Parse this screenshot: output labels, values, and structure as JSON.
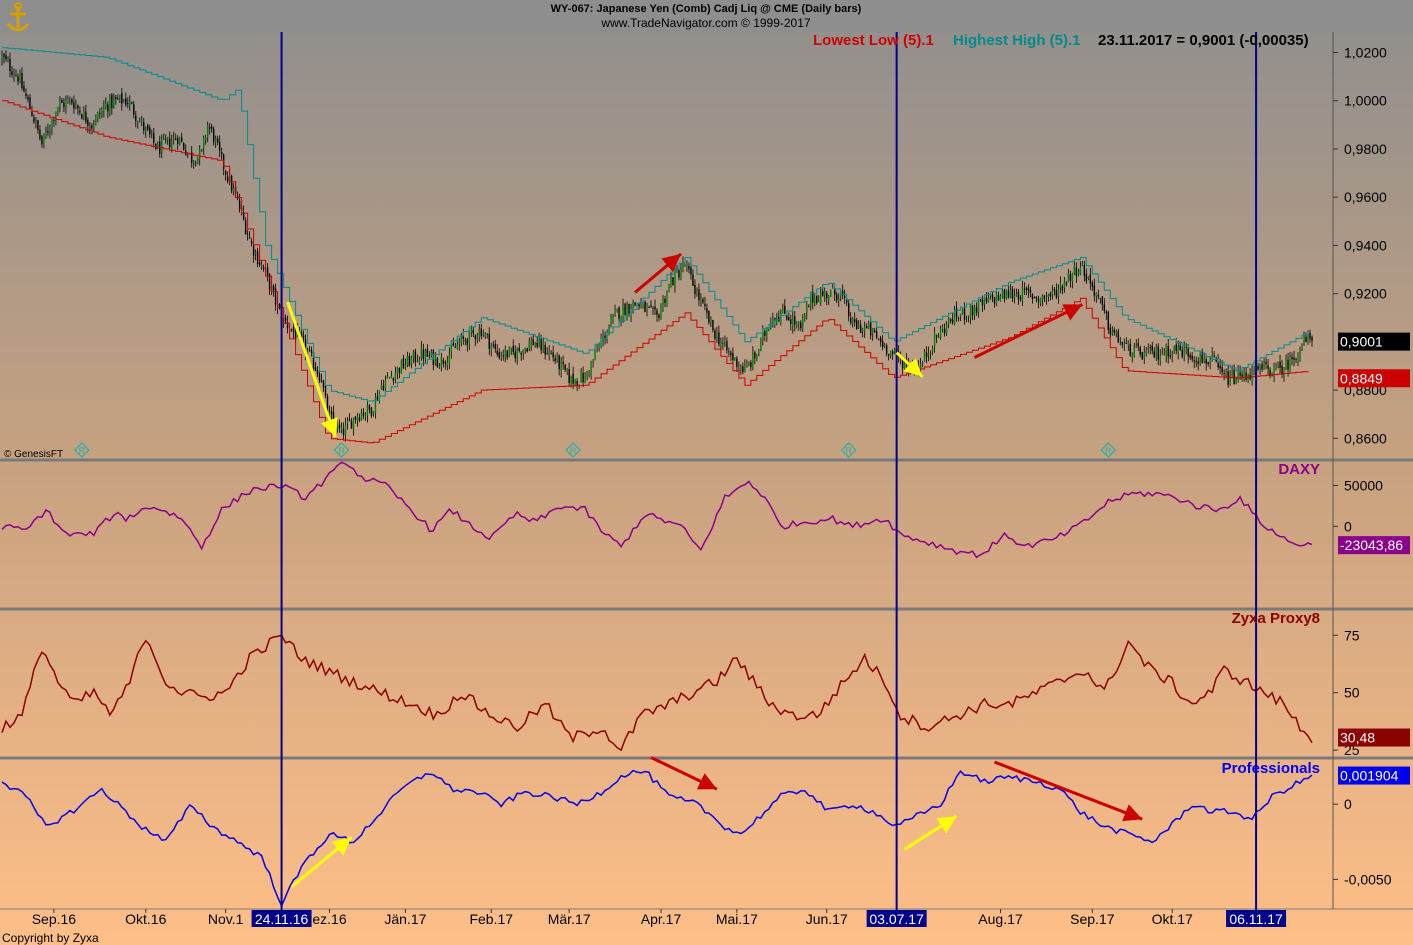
{
  "header": {
    "title_line1": "WY-067:  Japanese Yen (Comb) Cadj Liq @ CME  (Daily bars)",
    "title_line2": "www.TradeNavigator.com © 1999-2017",
    "legend_lowest": "Lowest Low (5).1",
    "legend_highest": "Highest High (5).1",
    "legend_value": "23.11.2017 = 0,9001 (-0,00035)"
  },
  "footer": {
    "copyright": "Copyright by Zyxa",
    "genesis": "© GenesisFT"
  },
  "colors": {
    "candle_up": "#008000",
    "candle_down": "#000000",
    "lowest": "#cc0000",
    "highest": "#008b8b",
    "daxy": "#8b008b",
    "proxy": "#8b0000",
    "prof": "#0000ee",
    "vline": "#00008b",
    "yellow_arrow": "#ffff00",
    "red_arrow": "#cc0000"
  },
  "chart_data": [
    {
      "type": "candlestick",
      "name_panel": "",
      "y_ticks": [
        "1,0200",
        "1,0000",
        "0,9800",
        "0,9600",
        "0,9400",
        "0,9200",
        "0,8800",
        "0,8600"
      ],
      "y_tick_values": [
        1.02,
        1.0,
        0.98,
        0.96,
        0.94,
        0.92,
        0.88,
        0.86
      ],
      "ylim": [
        0.851,
        1.0285
      ],
      "last_value": "0,9001",
      "last_value_num": 0.9001,
      "lowest_value": "0,8849",
      "lowest_value_num": 0.8849,
      "close_anchors": [
        [
          0,
          1.018
        ],
        [
          8,
          1.01
        ],
        [
          15,
          0.995
        ],
        [
          20,
          0.982
        ],
        [
          28,
          0.998
        ],
        [
          35,
          1.0
        ],
        [
          45,
          0.99
        ],
        [
          52,
          0.998
        ],
        [
          58,
          1.0
        ],
        [
          63,
          1.0
        ],
        [
          70,
          0.99
        ],
        [
          78,
          0.98
        ],
        [
          88,
          0.985
        ],
        [
          95,
          0.976
        ],
        [
          100,
          0.978
        ],
        [
          103,
          0.99
        ],
        [
          106,
          0.985
        ],
        [
          110,
          0.975
        ],
        [
          118,
          0.958
        ],
        [
          125,
          0.94
        ],
        [
          132,
          0.928
        ],
        [
          140,
          0.91
        ],
        [
          150,
          0.9
        ],
        [
          160,
          0.885
        ],
        [
          163,
          0.87
        ],
        [
          170,
          0.862
        ],
        [
          178,
          0.87
        ],
        [
          185,
          0.872
        ],
        [
          190,
          0.882
        ],
        [
          200,
          0.89
        ],
        [
          210,
          0.895
        ],
        [
          220,
          0.892
        ],
        [
          230,
          0.9
        ],
        [
          240,
          0.905
        ],
        [
          248,
          0.895
        ],
        [
          256,
          0.895
        ],
        [
          266,
          0.9
        ],
        [
          275,
          0.895
        ],
        [
          285,
          0.884
        ],
        [
          292,
          0.885
        ],
        [
          300,
          0.9
        ],
        [
          308,
          0.912
        ],
        [
          318,
          0.916
        ],
        [
          328,
          0.91
        ],
        [
          335,
          0.925
        ],
        [
          342,
          0.932
        ],
        [
          348,
          0.92
        ],
        [
          356,
          0.905
        ],
        [
          364,
          0.895
        ],
        [
          372,
          0.888
        ],
        [
          378,
          0.895
        ],
        [
          385,
          0.91
        ],
        [
          392,
          0.912
        ],
        [
          400,
          0.905
        ],
        [
          405,
          0.918
        ],
        [
          413,
          0.92
        ],
        [
          420,
          0.92
        ],
        [
          426,
          0.907
        ],
        [
          434,
          0.905
        ],
        [
          440,
          0.9
        ],
        [
          446,
          0.895
        ],
        [
          454,
          0.89
        ],
        [
          460,
          0.89
        ],
        [
          466,
          0.9
        ],
        [
          476,
          0.91
        ],
        [
          486,
          0.913
        ],
        [
          496,
          0.918
        ],
        [
          505,
          0.92
        ],
        [
          513,
          0.92
        ],
        [
          520,
          0.918
        ],
        [
          527,
          0.92
        ],
        [
          534,
          0.927
        ],
        [
          540,
          0.932
        ],
        [
          548,
          0.92
        ],
        [
          555,
          0.905
        ],
        [
          562,
          0.898
        ],
        [
          570,
          0.895
        ],
        [
          578,
          0.895
        ],
        [
          586,
          0.897
        ],
        [
          593,
          0.896
        ],
        [
          600,
          0.893
        ],
        [
          606,
          0.892
        ],
        [
          612,
          0.885
        ],
        [
          618,
          0.885
        ],
        [
          625,
          0.887
        ],
        [
          632,
          0.889
        ],
        [
          638,
          0.888
        ],
        [
          643,
          0.89
        ],
        [
          648,
          0.895
        ],
        [
          652,
          0.9
        ],
        [
          656,
          0.902
        ]
      ],
      "lowest_anchors": [
        [
          0,
          1.0
        ],
        [
          52,
          0.985
        ],
        [
          110,
          0.975
        ],
        [
          163,
          0.86
        ],
        [
          185,
          0.858
        ],
        [
          240,
          0.88
        ],
        [
          292,
          0.882
        ],
        [
          342,
          0.912
        ],
        [
          372,
          0.882
        ],
        [
          413,
          0.91
        ],
        [
          446,
          0.885
        ],
        [
          505,
          0.902
        ],
        [
          540,
          0.918
        ],
        [
          562,
          0.888
        ],
        [
          618,
          0.885
        ],
        [
          656,
          0.888
        ]
      ],
      "highest_anchors": [
        [
          0,
          1.022
        ],
        [
          52,
          1.018
        ],
        [
          110,
          1.0
        ],
        [
          118,
          1.005
        ],
        [
          132,
          0.94
        ],
        [
          163,
          0.88
        ],
        [
          185,
          0.875
        ],
        [
          240,
          0.91
        ],
        [
          292,
          0.895
        ],
        [
          342,
          0.935
        ],
        [
          372,
          0.9
        ],
        [
          413,
          0.925
        ],
        [
          446,
          0.9
        ],
        [
          505,
          0.925
        ],
        [
          540,
          0.935
        ],
        [
          562,
          0.91
        ],
        [
          618,
          0.888
        ],
        [
          656,
          0.905
        ]
      ]
    },
    {
      "type": "line",
      "name": "DAXY",
      "y_ticks": [
        "50000",
        "0"
      ],
      "y_tick_values": [
        50000,
        0
      ],
      "ylim": [
        -100000,
        80000
      ],
      "last_value": "-23043,86",
      "anchors": [
        [
          0,
          0
        ],
        [
          12,
          -5000
        ],
        [
          22,
          20000
        ],
        [
          32,
          -10000
        ],
        [
          45,
          -10000
        ],
        [
          56,
          15000
        ],
        [
          62,
          10000
        ],
        [
          75,
          25000
        ],
        [
          90,
          10000
        ],
        [
          100,
          -25000
        ],
        [
          110,
          20000
        ],
        [
          125,
          45000
        ],
        [
          140,
          50000
        ],
        [
          152,
          35000
        ],
        [
          172,
          80000
        ],
        [
          180,
          60000
        ],
        [
          192,
          50000
        ],
        [
          205,
          20000
        ],
        [
          215,
          -5000
        ],
        [
          225,
          20000
        ],
        [
          235,
          0
        ],
        [
          245,
          -15000
        ],
        [
          257,
          15000
        ],
        [
          267,
          5000
        ],
        [
          280,
          25000
        ],
        [
          292,
          20000
        ],
        [
          300,
          -5000
        ],
        [
          310,
          -25000
        ],
        [
          322,
          15000
        ],
        [
          340,
          0
        ],
        [
          350,
          -30000
        ],
        [
          362,
          35000
        ],
        [
          374,
          55000
        ],
        [
          382,
          35000
        ],
        [
          390,
          0
        ],
        [
          402,
          5000
        ],
        [
          415,
          10000
        ],
        [
          425,
          0
        ],
        [
          434,
          5000
        ],
        [
          442,
          10000
        ],
        [
          450,
          -10000
        ],
        [
          464,
          -20000
        ],
        [
          478,
          -30000
        ],
        [
          490,
          -35000
        ],
        [
          503,
          -10000
        ],
        [
          512,
          -25000
        ],
        [
          528,
          -15000
        ],
        [
          542,
          5000
        ],
        [
          554,
          30000
        ],
        [
          566,
          40000
        ],
        [
          578,
          40000
        ],
        [
          588,
          35000
        ],
        [
          598,
          25000
        ],
        [
          610,
          20000
        ],
        [
          620,
          35000
        ],
        [
          630,
          5000
        ],
        [
          645,
          -20000
        ],
        [
          656,
          -23043
        ]
      ]
    },
    {
      "type": "line",
      "name": "Zyxa Proxy8",
      "y_ticks": [
        "75",
        "50",
        "25"
      ],
      "y_tick_values": [
        75,
        50,
        25
      ],
      "ylim": [
        22,
        86
      ],
      "last_value": "30,48",
      "anchors": [
        [
          0,
          35
        ],
        [
          10,
          40
        ],
        [
          20,
          70
        ],
        [
          28,
          55
        ],
        [
          36,
          45
        ],
        [
          46,
          50
        ],
        [
          55,
          40
        ],
        [
          64,
          55
        ],
        [
          72,
          75
        ],
        [
          82,
          55
        ],
        [
          90,
          50
        ],
        [
          100,
          48
        ],
        [
          112,
          50
        ],
        [
          124,
          65
        ],
        [
          140,
          75
        ],
        [
          150,
          65
        ],
        [
          162,
          60
        ],
        [
          175,
          55
        ],
        [
          190,
          50
        ],
        [
          205,
          45
        ],
        [
          218,
          40
        ],
        [
          230,
          50
        ],
        [
          245,
          40
        ],
        [
          258,
          35
        ],
        [
          272,
          45
        ],
        [
          285,
          30
        ],
        [
          300,
          35
        ],
        [
          310,
          25
        ],
        [
          320,
          40
        ],
        [
          334,
          45
        ],
        [
          346,
          50
        ],
        [
          358,
          55
        ],
        [
          368,
          65
        ],
        [
          376,
          55
        ],
        [
          385,
          45
        ],
        [
          396,
          40
        ],
        [
          408,
          40
        ],
        [
          422,
          55
        ],
        [
          432,
          65
        ],
        [
          442,
          55
        ],
        [
          450,
          40
        ],
        [
          464,
          35
        ],
        [
          478,
          40
        ],
        [
          492,
          45
        ],
        [
          505,
          45
        ],
        [
          518,
          50
        ],
        [
          530,
          55
        ],
        [
          542,
          60
        ],
        [
          552,
          50
        ],
        [
          564,
          72
        ],
        [
          575,
          60
        ],
        [
          585,
          55
        ],
        [
          595,
          45
        ],
        [
          605,
          50
        ],
        [
          612,
          60
        ],
        [
          622,
          55
        ],
        [
          632,
          50
        ],
        [
          642,
          45
        ],
        [
          650,
          35
        ],
        [
          656,
          30.48
        ]
      ]
    },
    {
      "type": "line",
      "name": "Professionals",
      "y_ticks": [
        "0",
        "-0,0050"
      ],
      "y_tick_values": [
        0,
        -0.005
      ],
      "ylim": [
        -0.0069,
        0.003
      ],
      "last_value": "0,001904",
      "anchors": [
        [
          0,
          0.0015
        ],
        [
          12,
          0.0005
        ],
        [
          22,
          -0.0015
        ],
        [
          35,
          -0.0005
        ],
        [
          50,
          0.001
        ],
        [
          58,
          0.0
        ],
        [
          70,
          -0.0015
        ],
        [
          82,
          -0.0025
        ],
        [
          95,
          0.0
        ],
        [
          105,
          -0.0015
        ],
        [
          118,
          -0.0025
        ],
        [
          130,
          -0.0035
        ],
        [
          140,
          -0.0066
        ],
        [
          152,
          -0.0038
        ],
        [
          164,
          -0.002
        ],
        [
          176,
          -0.0025
        ],
        [
          190,
          -0.0005
        ],
        [
          200,
          0.001
        ],
        [
          215,
          0.0022
        ],
        [
          225,
          0.001
        ],
        [
          238,
          0.0008
        ],
        [
          250,
          0.0
        ],
        [
          262,
          0.0008
        ],
        [
          275,
          0.0005
        ],
        [
          288,
          0.0
        ],
        [
          300,
          0.0008
        ],
        [
          312,
          0.002
        ],
        [
          322,
          0.0022
        ],
        [
          334,
          0.0005
        ],
        [
          348,
          0.0
        ],
        [
          362,
          -0.0015
        ],
        [
          370,
          -0.002
        ],
        [
          378,
          -0.001
        ],
        [
          390,
          0.0005
        ],
        [
          402,
          0.001
        ],
        [
          414,
          -0.0005
        ],
        [
          426,
          0.0
        ],
        [
          436,
          -0.0005
        ],
        [
          448,
          -0.0015
        ],
        [
          458,
          -0.0008
        ],
        [
          470,
          0.0
        ],
        [
          480,
          0.0022
        ],
        [
          492,
          0.0015
        ],
        [
          504,
          0.0018
        ],
        [
          518,
          0.0015
        ],
        [
          530,
          0.001
        ],
        [
          540,
          -0.0005
        ],
        [
          552,
          -0.0015
        ],
        [
          564,
          -0.002
        ],
        [
          576,
          -0.0025
        ],
        [
          585,
          -0.0015
        ],
        [
          596,
          0.0
        ],
        [
          606,
          -0.0005
        ],
        [
          616,
          -0.0005
        ],
        [
          626,
          -0.001
        ],
        [
          636,
          0.0005
        ],
        [
          646,
          0.0012
        ],
        [
          656,
          0.0019
        ]
      ]
    }
  ],
  "x_axis": {
    "labels": [
      "Sep.16",
      "Okt.16",
      "Nov.1",
      "ez.16",
      "Jän.17",
      "Feb.17",
      "Mär.17",
      "Apr.17",
      "Mai.17",
      "Jun.17",
      "Aug.17",
      "Sep.17",
      "Okt.17"
    ],
    "label_day_index": [
      26,
      72,
      112,
      164,
      202,
      245,
      284,
      330,
      368,
      413,
      500,
      546,
      586
    ],
    "highlight_labels": [
      "24.11.16",
      "03.07.17",
      "06.11.17"
    ],
    "highlight_day_index": [
      140,
      448,
      628
    ]
  },
  "annotations": {
    "vline_day_index": [
      140,
      448,
      628
    ],
    "r_marker_day_index": [
      40,
      170,
      286,
      424,
      554
    ],
    "r_marker_label": "R",
    "yellow_arrows": [
      {
        "panel": 0,
        "from": [
          143,
          0.9165
        ],
        "to": [
          167,
          0.8605
        ]
      },
      {
        "panel": 0,
        "from": [
          448,
          0.8955
        ],
        "to": [
          461,
          0.8855
        ]
      },
      {
        "panel": 3,
        "from": [
          145,
          -0.0055
        ],
        "to": [
          175,
          -0.0022
        ]
      },
      {
        "panel": 3,
        "from": [
          452,
          -0.003
        ],
        "to": [
          478,
          -0.0008
        ]
      }
    ],
    "red_arrows": [
      {
        "panel": 0,
        "from": [
          317,
          0.9205
        ],
        "to": [
          340,
          0.9365
        ]
      },
      {
        "panel": 0,
        "from": [
          487,
          0.8935
        ],
        "to": [
          541,
          0.9155
        ]
      },
      {
        "panel": 3,
        "from": [
          325,
          0.0031
        ],
        "to": [
          358,
          0.001
        ]
      },
      {
        "panel": 3,
        "from": [
          497,
          0.0028
        ],
        "to": [
          571,
          -0.001
        ]
      }
    ]
  }
}
